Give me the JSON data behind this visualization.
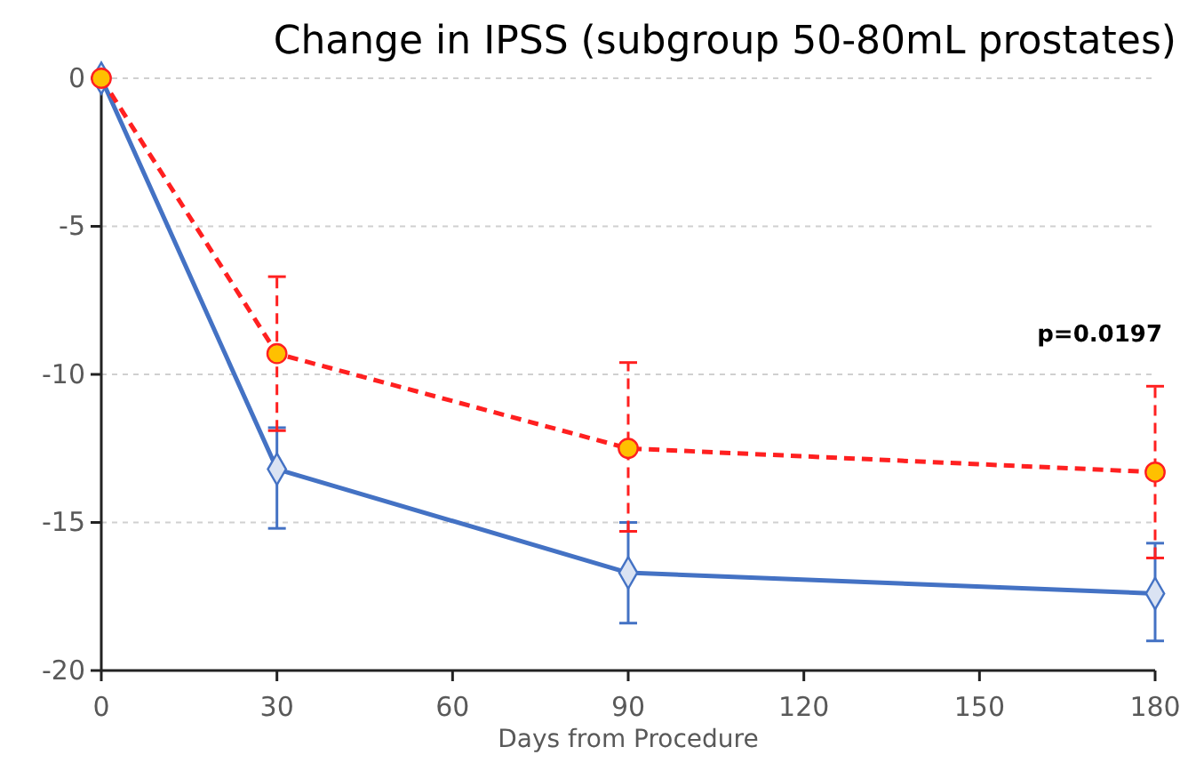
{
  "chart_data": {
    "type": "line",
    "title": "Change in IPSS (subgroup 50-80mL prostates)",
    "xlabel": "Days from Procedure",
    "x": [
      0,
      30,
      90,
      180
    ],
    "series": [
      {
        "color": "#4472c4",
        "marker": "diamond",
        "line_style": "solid",
        "values": [
          0,
          -13.2,
          -16.7,
          -17.4
        ],
        "errors": [
          null,
          [
            -15.2,
            -11.8
          ],
          [
            -18.4,
            -15.0
          ],
          [
            -19.0,
            -15.7
          ]
        ]
      },
      {
        "color": "#ff2020",
        "marker": "circle",
        "line_style": "dashed",
        "values": [
          0,
          -9.3,
          -12.5,
          -13.3
        ],
        "errors": [
          null,
          [
            -11.9,
            -6.7
          ],
          [
            -15.3,
            -9.6
          ],
          [
            -16.2,
            -10.4
          ]
        ]
      }
    ],
    "xlim": [
      0,
      180
    ],
    "xticks": [
      0,
      30,
      60,
      90,
      120,
      150,
      180
    ],
    "ylim": [
      -20,
      0
    ],
    "yticks": [
      0,
      -5,
      -10,
      -15,
      -20
    ],
    "grid": "y",
    "annotations": [
      "p=0.0197"
    ]
  }
}
